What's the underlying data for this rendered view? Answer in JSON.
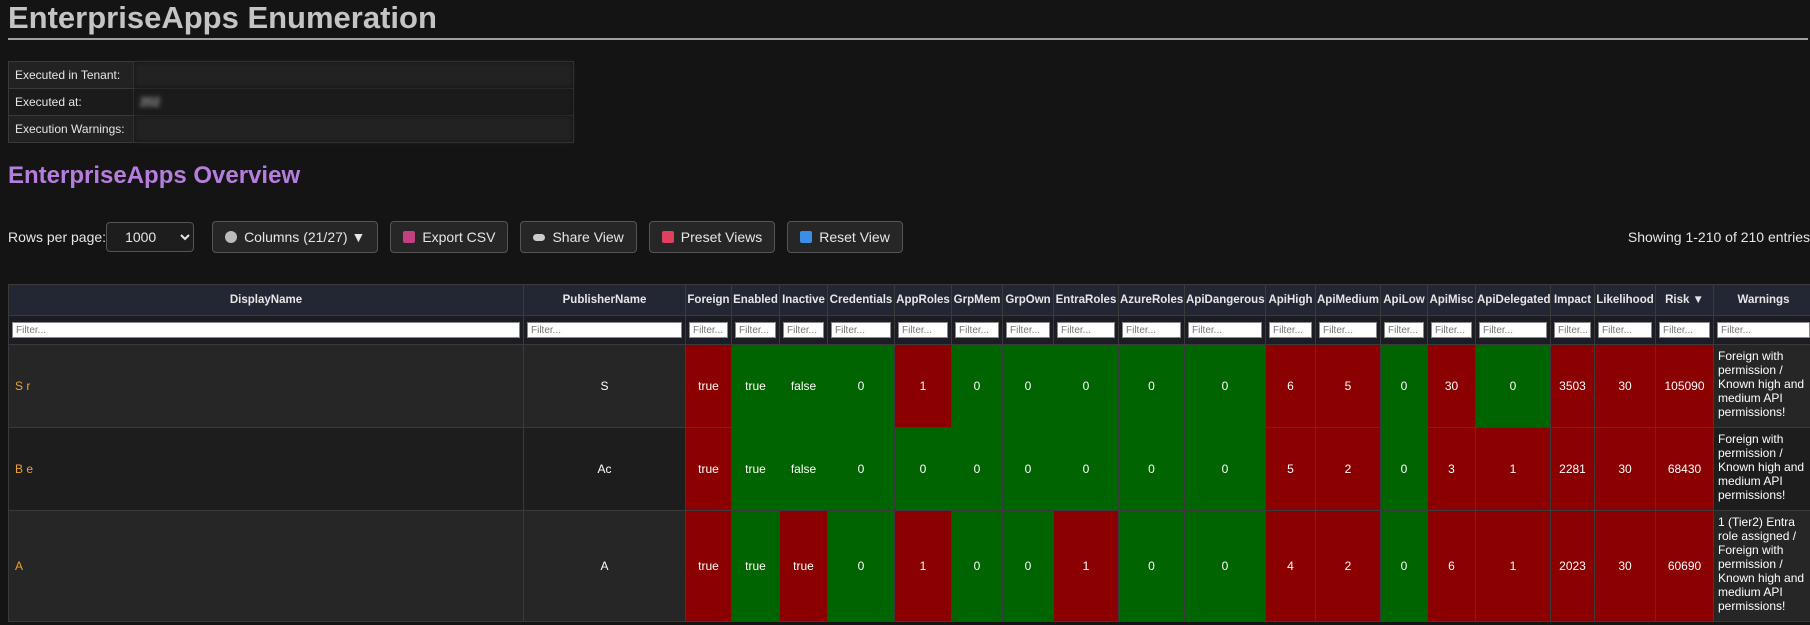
{
  "header": {
    "title": "EnterpriseApps Enumeration"
  },
  "info": {
    "rows": [
      [
        "Executed in Tenant:",
        ""
      ],
      [
        "Executed at:",
        "202"
      ],
      [
        "Execution Warnings:",
        ""
      ]
    ]
  },
  "section_title": "EnterpriseApps Overview",
  "toolbar": {
    "rows_label": "Rows per page:",
    "rows_value": "1000",
    "columns_button": "Columns (21/27) ▼",
    "export_button": "Export CSV",
    "share_button": "Share View",
    "preset_button": "Preset Views",
    "reset_button": "Reset View",
    "showing": "Showing 1-210 of 210 entries"
  },
  "table": {
    "columns": [
      "DisplayName",
      "PublisherName",
      "Foreign",
      "Enabled",
      "Inactive",
      "Credentials",
      "AppRoles",
      "GrpMem",
      "GrpOwn",
      "EntraRoles",
      "AzureRoles",
      "ApiDangerous",
      "ApiHigh",
      "ApiMedium",
      "ApiLow",
      "ApiMisc",
      "ApiDelegated",
      "Impact",
      "Likelihood",
      "Risk ▼",
      "Warnings"
    ],
    "filter_placeholder": "Filter...",
    "rows": [
      {
        "cells": [
          "S r",
          "S",
          true,
          true,
          false,
          0,
          1,
          0,
          0,
          0,
          0,
          0,
          6,
          5,
          0,
          30,
          0,
          3503,
          30,
          105090,
          "Foreign with permission / Known high and medium API permissions!"
        ],
        "colors": [
          null,
          null,
          "#8b0000",
          "#006400",
          "#006400",
          "#006400",
          "#8b0000",
          "#006400",
          "#006400",
          "#006400",
          "#006400",
          "#006400",
          "#8b0000",
          "#8b0000",
          "#006400",
          "#8b0000",
          "#006400",
          "#8b0000",
          "#8b0000",
          "#8b0000",
          null
        ]
      },
      {
        "cells": [
          "B e",
          "Ac",
          true,
          true,
          false,
          0,
          0,
          0,
          0,
          0,
          0,
          0,
          5,
          2,
          0,
          3,
          1,
          2281,
          30,
          68430,
          "Foreign with permission / Known high and medium API permissions!"
        ],
        "colors": [
          null,
          null,
          "#8b0000",
          "#006400",
          "#006400",
          "#006400",
          "#006400",
          "#006400",
          "#006400",
          "#006400",
          "#006400",
          "#006400",
          "#8b0000",
          "#8b0000",
          "#006400",
          "#8b0000",
          "#8b0000",
          "#8b0000",
          "#8b0000",
          "#8b0000",
          null
        ]
      },
      {
        "cells": [
          "A",
          "A",
          true,
          true,
          true,
          0,
          1,
          0,
          0,
          1,
          0,
          0,
          4,
          2,
          0,
          6,
          1,
          2023,
          30,
          60690,
          "1 (Tier2) Entra role assigned / Foreign with permission / Known high and medium API permissions!"
        ],
        "colors": [
          null,
          null,
          "#8b0000",
          "#006400",
          "#8b0000",
          "#006400",
          "#8b0000",
          "#006400",
          "#006400",
          "#8b0000",
          "#006400",
          "#006400",
          "#8b0000",
          "#8b0000",
          "#006400",
          "#8b0000",
          "#8b0000",
          "#8b0000",
          "#8b0000",
          "#8b0000",
          null
        ]
      }
    ]
  }
}
